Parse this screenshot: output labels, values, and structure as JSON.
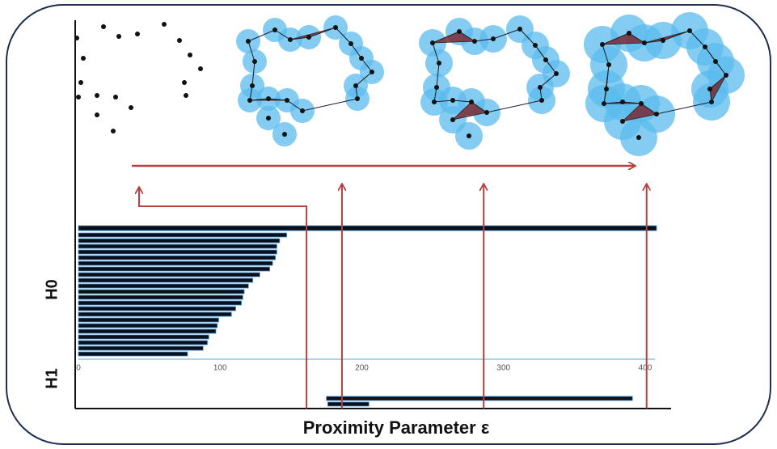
{
  "chart_data": {
    "type": "barcode",
    "x_label": "Proximity Parameter ε",
    "xlim": [
      0,
      408
    ],
    "xticks": [
      0,
      100,
      200,
      300,
      400
    ],
    "series": [
      {
        "name": "H0",
        "color": "#0a0f1a",
        "intervals": [
          [
            0,
            408
          ],
          [
            0,
            147
          ],
          [
            0,
            142
          ],
          [
            0,
            140
          ],
          [
            0,
            140
          ],
          [
            0,
            139
          ],
          [
            0,
            137
          ],
          [
            0,
            135
          ],
          [
            0,
            128
          ],
          [
            0,
            123
          ],
          [
            0,
            120
          ],
          [
            0,
            117
          ],
          [
            0,
            116
          ],
          [
            0,
            115
          ],
          [
            0,
            111
          ],
          [
            0,
            108
          ],
          [
            0,
            99
          ],
          [
            0,
            98
          ],
          [
            0,
            97
          ],
          [
            0,
            92
          ],
          [
            0,
            91
          ],
          [
            0,
            88
          ],
          [
            0,
            77
          ]
        ]
      },
      {
        "name": "H1",
        "color": "#0a0f1a",
        "intervals": [
          [
            175,
            391
          ],
          [
            176,
            205
          ]
        ]
      }
    ],
    "markers": [
      161,
      186,
      286,
      401
    ],
    "marker_color": "#b5403f"
  }
}
